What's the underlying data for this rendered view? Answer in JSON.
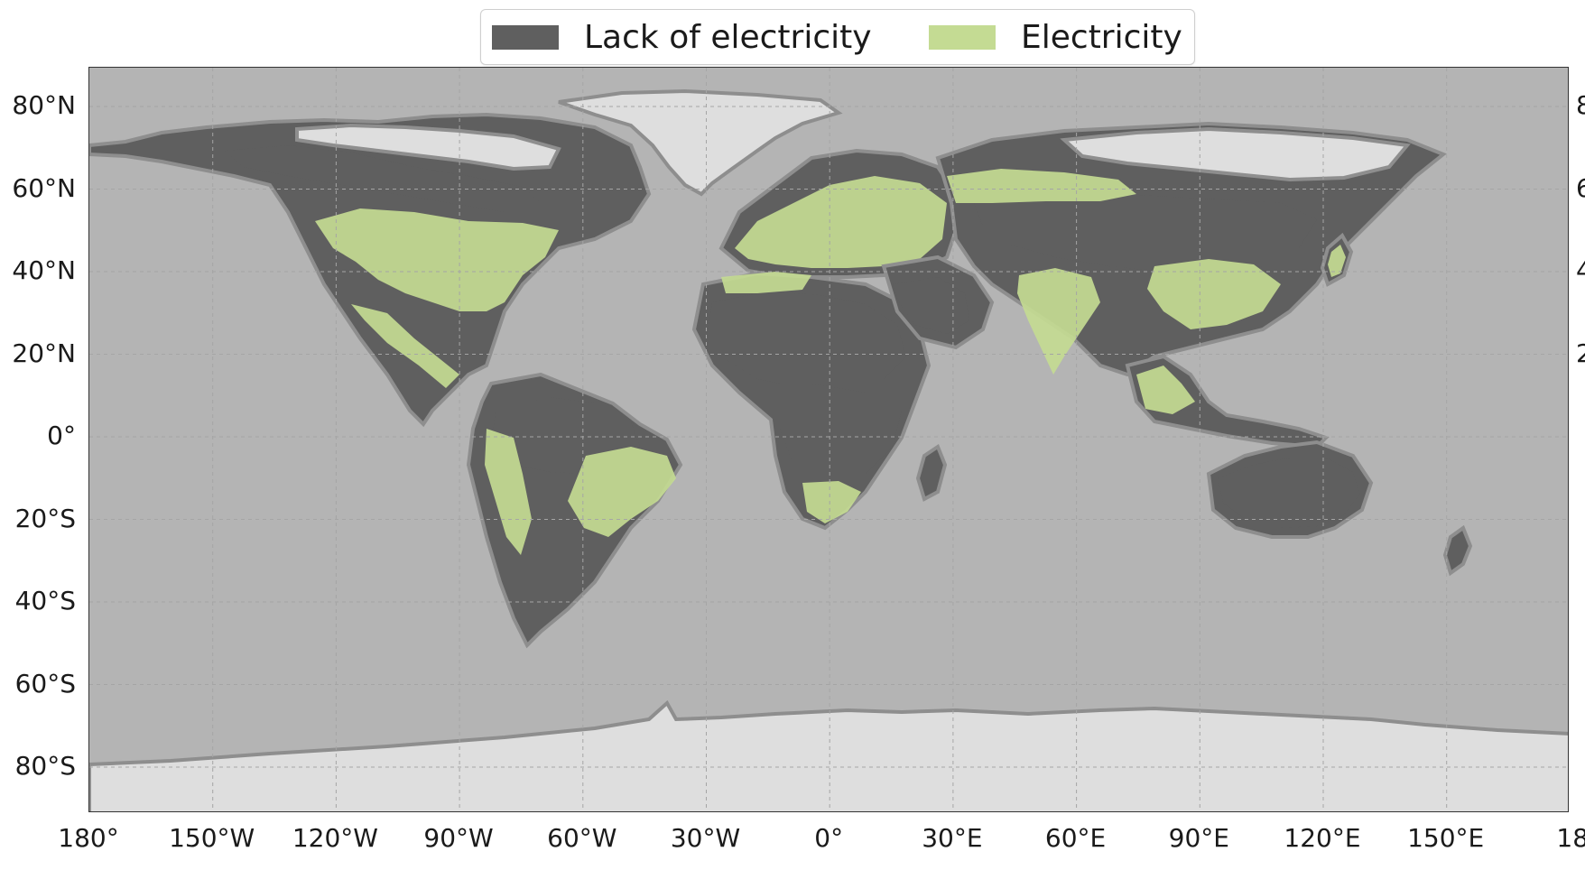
{
  "legend": {
    "lack_label": "Lack of electricity",
    "electricity_label": "Electricity"
  },
  "colors": {
    "ocean": "#b4b4b4",
    "ice": "#dedede",
    "lack_of_electricity": "#5f5f5f",
    "electricity": "#c4db93",
    "coastline": "#8e8e8e",
    "gridline_major": "#8a8a8a",
    "gridline_minor": "#a5a5a5"
  },
  "axes": {
    "lat_labels": [
      "80°N",
      "60°N",
      "40°N",
      "20°N",
      "0°",
      "20°S",
      "40°S",
      "60°S",
      "80°S"
    ],
    "lon_labels": [
      "180°",
      "150°W",
      "120°W",
      "90°W",
      "60°W",
      "30°W",
      "0°",
      "30°E",
      "60°E",
      "90°E",
      "120°E",
      "150°E",
      "18"
    ],
    "right_partial_labels": [
      "8",
      "6",
      "4",
      "2"
    ]
  }
}
